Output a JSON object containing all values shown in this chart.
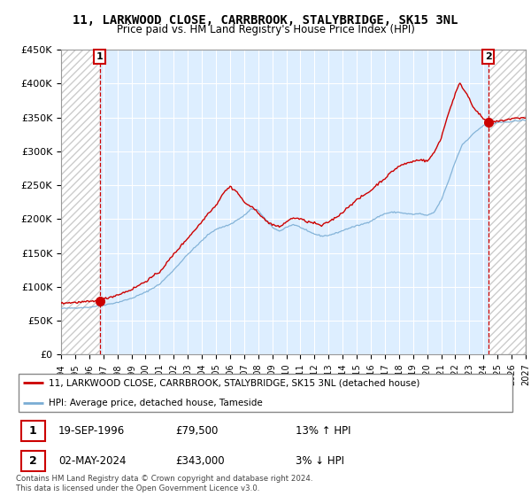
{
  "title": "11, LARKWOOD CLOSE, CARRBROOK, STALYBRIDGE, SK15 3NL",
  "subtitle": "Price paid vs. HM Land Registry's House Price Index (HPI)",
  "hpi_label": "HPI: Average price, detached house, Tameside",
  "property_label": "11, LARKWOOD CLOSE, CARRBROOK, STALYBRIDGE, SK15 3NL (detached house)",
  "sale1_date": "19-SEP-1996",
  "sale1_price": 79500,
  "sale1_hpi": "13% ↑ HPI",
  "sale2_date": "02-MAY-2024",
  "sale2_price": 343000,
  "sale2_hpi": "3% ↓ HPI",
  "footer": "Contains HM Land Registry data © Crown copyright and database right 2024.\nThis data is licensed under the Open Government Licence v3.0.",
  "hpi_color": "#7aadd4",
  "property_color": "#cc0000",
  "plot_bg_color": "#ddeeff",
  "ylim": [
    0,
    450000
  ],
  "yticks": [
    0,
    50000,
    100000,
    150000,
    200000,
    250000,
    300000,
    350000,
    400000,
    450000
  ],
  "sale1_year": 1996.75,
  "sale2_year": 2024.33,
  "xmin": 1994,
  "xmax": 2027
}
